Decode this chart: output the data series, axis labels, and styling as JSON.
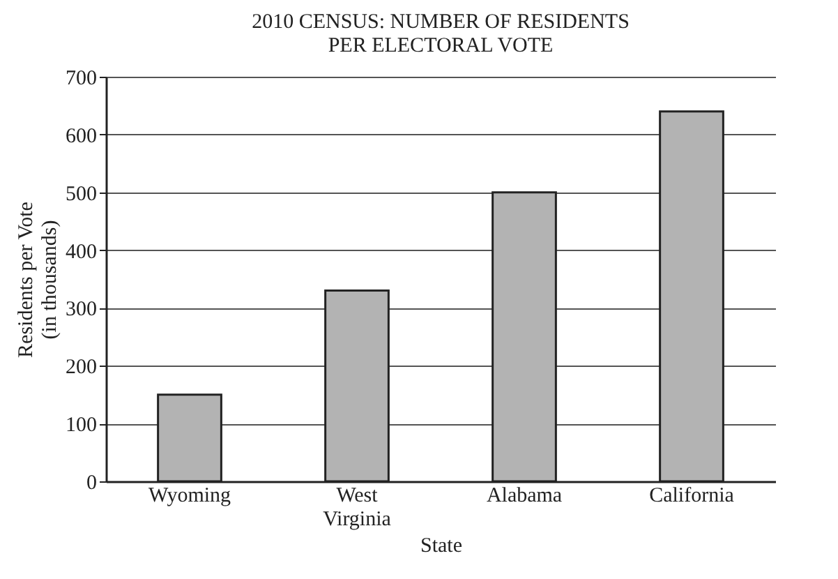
{
  "chart_data": {
    "type": "bar",
    "title": "2010 CENSUS: NUMBER OF RESIDENTS\nPER ELECTORAL VOTE",
    "xlabel": "State",
    "ylabel": "Residents per Vote\n(in thousands)",
    "categories": [
      "Wyoming",
      "West Virginia",
      "Alabama",
      "California"
    ],
    "values": [
      150,
      330,
      500,
      640
    ],
    "color": "#b3b3b3",
    "ylim": [
      0,
      700
    ],
    "yticks": [
      0,
      100,
      200,
      300,
      400,
      500,
      600,
      700
    ],
    "grid": "y"
  }
}
